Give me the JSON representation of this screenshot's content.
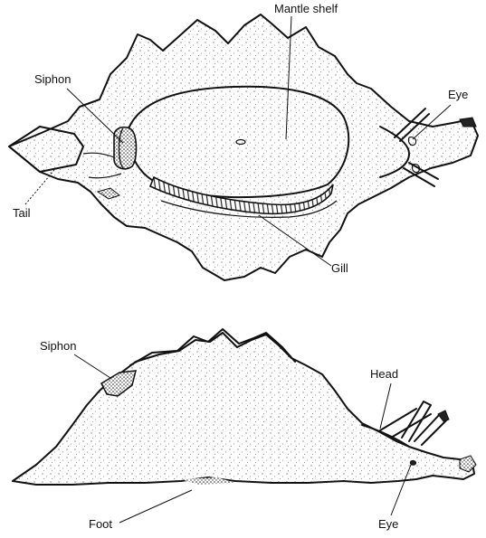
{
  "top_view": {
    "labels": {
      "mantle_shelf": "Mantle shelf",
      "siphon": "Siphon",
      "eye": "Eye",
      "tail": "Tail",
      "gill": "Gill"
    }
  },
  "side_view": {
    "labels": {
      "siphon": "Siphon",
      "head": "Head",
      "foot": "Foot",
      "eye": "Eye"
    }
  }
}
